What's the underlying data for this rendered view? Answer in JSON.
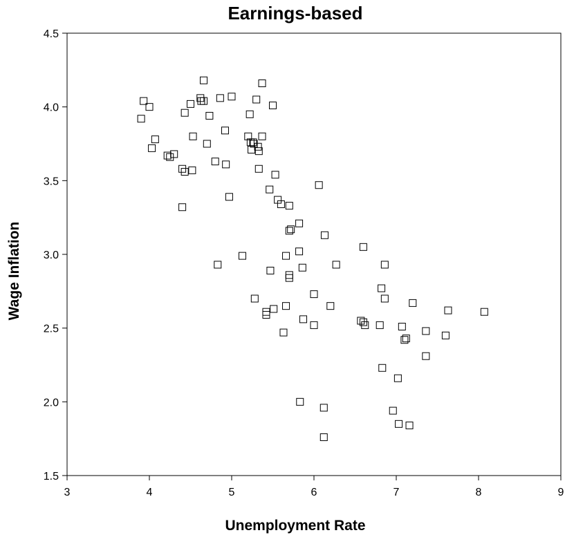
{
  "chart_data": {
    "type": "scatter",
    "title": "Earnings-based",
    "xlabel": "Unemployment Rate",
    "ylabel": "Wage Inflation",
    "xlim": [
      3,
      9
    ],
    "ylim": [
      1.5,
      4.5
    ],
    "xticks": [
      3,
      4,
      5,
      6,
      7,
      8,
      9
    ],
    "yticks": [
      1.5,
      2.0,
      2.5,
      3.0,
      3.5,
      4.0,
      4.5
    ],
    "ytick_labels": [
      "1.5",
      "2.0",
      "2.5",
      "3.0",
      "3.5",
      "4.0",
      "4.5"
    ],
    "xtick_labels": [
      "3",
      "4",
      "5",
      "6",
      "7",
      "8",
      "9"
    ],
    "grid": false,
    "legend": "none",
    "marker": "open-square",
    "series": [
      {
        "x": [
          3.93,
          4.0,
          3.9,
          4.07,
          4.03,
          4.22,
          4.25,
          4.3,
          4.4,
          4.43,
          4.4,
          4.43,
          4.5,
          4.53,
          4.52,
          4.62,
          4.63,
          4.66,
          4.66,
          4.7,
          4.73,
          4.8,
          4.83,
          4.86,
          4.92,
          4.93,
          4.97,
          5.0,
          5.13,
          5.22,
          5.2,
          5.23,
          5.24,
          5.26,
          5.28,
          5.3,
          5.32,
          5.33,
          5.33,
          5.37,
          5.37,
          5.27,
          5.42,
          5.42,
          5.46,
          5.47,
          5.5,
          5.51,
          5.53,
          5.56,
          5.6,
          5.63,
          5.66,
          5.66,
          5.7,
          5.7,
          5.72,
          5.7,
          5.7,
          5.82,
          5.82,
          5.83,
          5.86,
          5.87,
          6.0,
          6.0,
          6.06,
          6.12,
          6.13,
          6.12,
          6.2,
          6.27,
          6.57,
          6.6,
          6.6,
          6.62,
          6.8,
          6.82,
          6.83,
          6.86,
          6.86,
          6.96,
          7.02,
          7.03,
          7.07,
          7.1,
          7.12,
          7.16,
          7.2,
          7.36,
          7.36,
          7.6,
          7.63,
          8.07
        ],
        "y": [
          4.04,
          4.0,
          3.92,
          3.78,
          3.72,
          3.67,
          3.66,
          3.68,
          3.58,
          3.56,
          3.32,
          3.96,
          4.02,
          3.8,
          3.57,
          4.06,
          4.04,
          4.04,
          4.18,
          3.75,
          3.94,
          3.63,
          2.93,
          4.06,
          3.84,
          3.61,
          3.39,
          4.07,
          2.99,
          3.95,
          3.8,
          3.76,
          3.71,
          3.76,
          2.7,
          4.05,
          3.73,
          3.7,
          3.58,
          3.8,
          4.16,
          3.75,
          2.61,
          2.59,
          3.44,
          2.89,
          4.01,
          2.63,
          3.54,
          3.37,
          3.34,
          2.47,
          2.65,
          2.99,
          2.84,
          2.86,
          3.17,
          3.16,
          3.33,
          3.21,
          3.02,
          2.0,
          2.91,
          2.56,
          2.73,
          2.52,
          3.47,
          1.96,
          3.13,
          1.76,
          2.65,
          2.93,
          2.55,
          3.05,
          2.54,
          2.52,
          2.52,
          2.77,
          2.23,
          2.93,
          2.7,
          1.94,
          2.16,
          1.85,
          2.51,
          2.42,
          2.43,
          1.84,
          2.67,
          2.48,
          2.31,
          2.45,
          2.62,
          2.61
        ]
      }
    ]
  }
}
